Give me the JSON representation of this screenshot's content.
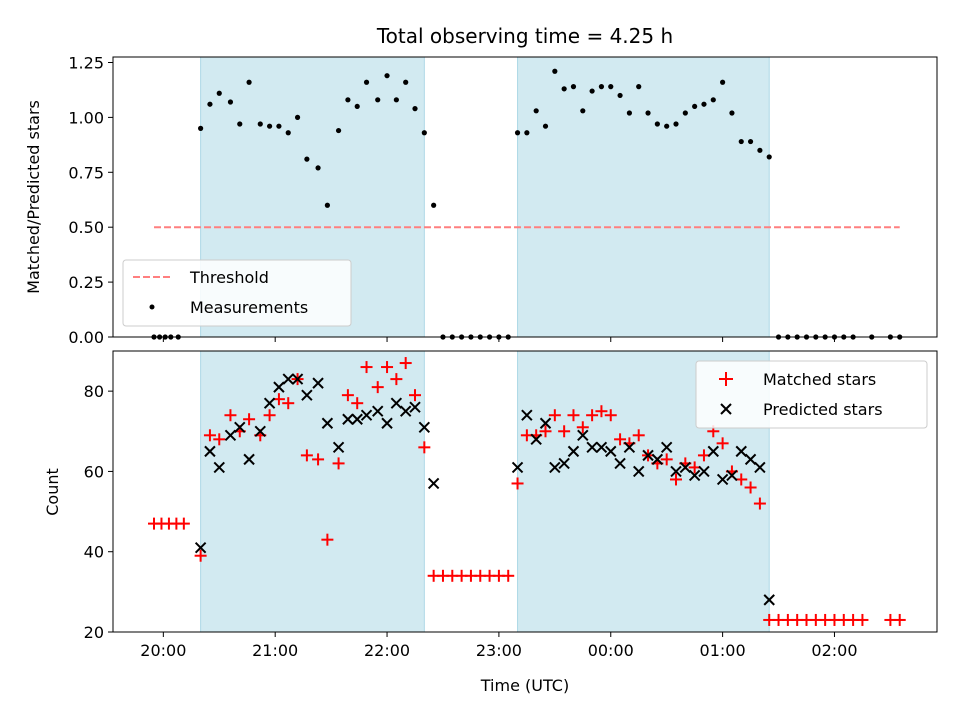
{
  "chart_data": [
    {
      "type": "scatter",
      "title": "Total observing time = 4.25 h",
      "ylabel": "Matched/Predicted stars",
      "xlabel": "",
      "xlim": [
        "19:33",
        "02:55"
      ],
      "ylim": [
        0,
        1.275
      ],
      "yticks": [
        0.0,
        0.25,
        0.5,
        0.75,
        1.0,
        1.25
      ],
      "ytick_labels": [
        "0.00",
        "0.25",
        "0.50",
        "0.75",
        "1.00",
        "1.25"
      ],
      "xticks": [
        "20:00",
        "21:00",
        "22:00",
        "23:00",
        "00:00",
        "01:00",
        "02:00"
      ],
      "shaded_intervals": [
        [
          "20:20",
          "22:20"
        ],
        [
          "23:10",
          "01:25"
        ]
      ],
      "shade_color": "#add8e6",
      "threshold": {
        "name": "Threshold",
        "value": 0.5,
        "x_range": [
          "19:55",
          "02:35"
        ],
        "color": "#ff7f7f"
      },
      "legend": {
        "position": "lower-left",
        "entries": [
          "Threshold",
          "Measurements"
        ]
      },
      "series": [
        {
          "name": "Measurements",
          "color": "#000000",
          "points": [
            [
              "19:55",
              0
            ],
            [
              "19:58",
              0
            ],
            [
              "20:01",
              0
            ],
            [
              "20:04",
              0
            ],
            [
              "20:08",
              0
            ],
            [
              "20:20",
              0.95
            ],
            [
              "20:25",
              1.06
            ],
            [
              "20:30",
              1.11
            ],
            [
              "20:36",
              1.07
            ],
            [
              "20:41",
              0.97
            ],
            [
              "20:46",
              1.16
            ],
            [
              "20:52",
              0.97
            ],
            [
              "20:57",
              0.96
            ],
            [
              "21:02",
              0.96
            ],
            [
              "21:07",
              0.93
            ],
            [
              "21:12",
              1.0
            ],
            [
              "21:17",
              0.81
            ],
            [
              "21:23",
              0.77
            ],
            [
              "21:28",
              0.6
            ],
            [
              "21:34",
              0.94
            ],
            [
              "21:39",
              1.08
            ],
            [
              "21:44",
              1.05
            ],
            [
              "21:49",
              1.16
            ],
            [
              "21:55",
              1.08
            ],
            [
              "22:00",
              1.19
            ],
            [
              "22:05",
              1.08
            ],
            [
              "22:10",
              1.16
            ],
            [
              "22:15",
              1.04
            ],
            [
              "22:20",
              0.93
            ],
            [
              "22:25",
              0.6
            ],
            [
              "22:30",
              0
            ],
            [
              "22:35",
              0
            ],
            [
              "22:40",
              0
            ],
            [
              "22:45",
              0
            ],
            [
              "22:50",
              0
            ],
            [
              "22:55",
              0
            ],
            [
              "23:00",
              0
            ],
            [
              "23:05",
              0
            ],
            [
              "23:10",
              0.93
            ],
            [
              "23:15",
              0.93
            ],
            [
              "23:20",
              1.03
            ],
            [
              "23:25",
              0.96
            ],
            [
              "23:30",
              1.21
            ],
            [
              "23:35",
              1.13
            ],
            [
              "23:40",
              1.14
            ],
            [
              "23:45",
              1.03
            ],
            [
              "23:50",
              1.12
            ],
            [
              "23:55",
              1.14
            ],
            [
              "00:00",
              1.14
            ],
            [
              "00:05",
              1.1
            ],
            [
              "00:10",
              1.02
            ],
            [
              "00:15",
              1.14
            ],
            [
              "00:20",
              1.02
            ],
            [
              "00:25",
              0.97
            ],
            [
              "00:30",
              0.96
            ],
            [
              "00:35",
              0.97
            ],
            [
              "00:40",
              1.02
            ],
            [
              "00:45",
              1.05
            ],
            [
              "00:50",
              1.06
            ],
            [
              "00:55",
              1.08
            ],
            [
              "01:00",
              1.16
            ],
            [
              "01:05",
              1.02
            ],
            [
              "01:10",
              0.89
            ],
            [
              "01:15",
              0.89
            ],
            [
              "01:20",
              0.85
            ],
            [
              "01:25",
              0.82
            ],
            [
              "01:30",
              0
            ],
            [
              "01:35",
              0
            ],
            [
              "01:40",
              0
            ],
            [
              "01:45",
              0
            ],
            [
              "01:50",
              0
            ],
            [
              "01:55",
              0
            ],
            [
              "02:00",
              0
            ],
            [
              "02:05",
              0
            ],
            [
              "02:10",
              0
            ],
            [
              "02:20",
              0
            ],
            [
              "02:30",
              0
            ],
            [
              "02:35",
              0
            ]
          ]
        }
      ]
    },
    {
      "type": "scatter",
      "title": "",
      "ylabel": "Count",
      "xlabel": "Time (UTC)",
      "xlim": [
        "19:33",
        "02:55"
      ],
      "ylim": [
        20,
        90
      ],
      "yticks": [
        20,
        40,
        60,
        80
      ],
      "ytick_labels": [
        "20",
        "40",
        "60",
        "80"
      ],
      "xticks": [
        "20:00",
        "21:00",
        "22:00",
        "23:00",
        "00:00",
        "01:00",
        "02:00"
      ],
      "shaded_intervals": [
        [
          "20:20",
          "22:20"
        ],
        [
          "23:10",
          "01:25"
        ]
      ],
      "shade_color": "#add8e6",
      "legend": {
        "position": "upper-right",
        "entries": [
          "Matched stars",
          "Predicted stars"
        ]
      },
      "series": [
        {
          "name": "Matched stars",
          "marker": "plus",
          "color": "#ff0000",
          "points": [
            [
              "19:55",
              47
            ],
            [
              "19:59",
              47
            ],
            [
              "20:03",
              47
            ],
            [
              "20:07",
              47
            ],
            [
              "20:11",
              47
            ],
            [
              "20:20",
              39
            ],
            [
              "20:25",
              69
            ],
            [
              "20:30",
              68
            ],
            [
              "20:36",
              74
            ],
            [
              "20:41",
              70
            ],
            [
              "20:46",
              73
            ],
            [
              "20:52",
              69
            ],
            [
              "20:57",
              74
            ],
            [
              "21:02",
              78
            ],
            [
              "21:07",
              77
            ],
            [
              "21:12",
              83
            ],
            [
              "21:17",
              64
            ],
            [
              "21:23",
              63
            ],
            [
              "21:28",
              43
            ],
            [
              "21:34",
              62
            ],
            [
              "21:39",
              79
            ],
            [
              "21:44",
              77
            ],
            [
              "21:49",
              86
            ],
            [
              "21:55",
              81
            ],
            [
              "22:00",
              86
            ],
            [
              "22:05",
              83
            ],
            [
              "22:10",
              87
            ],
            [
              "22:15",
              79
            ],
            [
              "22:20",
              66
            ],
            [
              "22:25",
              34
            ],
            [
              "22:30",
              34
            ],
            [
              "22:35",
              34
            ],
            [
              "22:40",
              34
            ],
            [
              "22:45",
              34
            ],
            [
              "22:50",
              34
            ],
            [
              "22:55",
              34
            ],
            [
              "23:00",
              34
            ],
            [
              "23:05",
              34
            ],
            [
              "23:10",
              57
            ],
            [
              "23:15",
              69
            ],
            [
              "23:20",
              69
            ],
            [
              "23:25",
              70
            ],
            [
              "23:30",
              74
            ],
            [
              "23:35",
              70
            ],
            [
              "23:40",
              74
            ],
            [
              "23:45",
              71
            ],
            [
              "23:50",
              74
            ],
            [
              "23:55",
              75
            ],
            [
              "00:00",
              74
            ],
            [
              "00:05",
              68
            ],
            [
              "00:10",
              67
            ],
            [
              "00:15",
              69
            ],
            [
              "00:20",
              64
            ],
            [
              "00:25",
              62
            ],
            [
              "00:30",
              63
            ],
            [
              "00:35",
              58
            ],
            [
              "00:40",
              62
            ],
            [
              "00:45",
              61
            ],
            [
              "00:50",
              64
            ],
            [
              "00:55",
              70
            ],
            [
              "01:00",
              67
            ],
            [
              "01:05",
              60
            ],
            [
              "01:10",
              58
            ],
            [
              "01:15",
              56
            ],
            [
              "01:20",
              52
            ],
            [
              "01:25",
              23
            ],
            [
              "01:30",
              23
            ],
            [
              "01:35",
              23
            ],
            [
              "01:40",
              23
            ],
            [
              "01:45",
              23
            ],
            [
              "01:50",
              23
            ],
            [
              "01:55",
              23
            ],
            [
              "02:00",
              23
            ],
            [
              "02:05",
              23
            ],
            [
              "02:10",
              23
            ],
            [
              "02:15",
              23
            ],
            [
              "02:30",
              23
            ],
            [
              "02:35",
              23
            ]
          ]
        },
        {
          "name": "Predicted stars",
          "marker": "x",
          "color": "#000000",
          "points": [
            [
              "20:20",
              41
            ],
            [
              "20:25",
              65
            ],
            [
              "20:30",
              61
            ],
            [
              "20:36",
              69
            ],
            [
              "20:41",
              71
            ],
            [
              "20:46",
              63
            ],
            [
              "20:52",
              70
            ],
            [
              "20:57",
              77
            ],
            [
              "21:02",
              81
            ],
            [
              "21:07",
              83
            ],
            [
              "21:12",
              83
            ],
            [
              "21:17",
              79
            ],
            [
              "21:23",
              82
            ],
            [
              "21:28",
              72
            ],
            [
              "21:34",
              66
            ],
            [
              "21:39",
              73
            ],
            [
              "21:44",
              73
            ],
            [
              "21:49",
              74
            ],
            [
              "21:55",
              75
            ],
            [
              "22:00",
              72
            ],
            [
              "22:05",
              77
            ],
            [
              "22:10",
              75
            ],
            [
              "22:15",
              76
            ],
            [
              "22:20",
              71
            ],
            [
              "22:25",
              57
            ],
            [
              "23:10",
              61
            ],
            [
              "23:15",
              74
            ],
            [
              "23:20",
              68
            ],
            [
              "23:25",
              72
            ],
            [
              "23:30",
              61
            ],
            [
              "23:35",
              62
            ],
            [
              "23:40",
              65
            ],
            [
              "23:45",
              69
            ],
            [
              "23:50",
              66
            ],
            [
              "23:55",
              66
            ],
            [
              "00:00",
              65
            ],
            [
              "00:05",
              62
            ],
            [
              "00:10",
              66
            ],
            [
              "00:15",
              60
            ],
            [
              "00:20",
              64
            ],
            [
              "00:25",
              63
            ],
            [
              "00:30",
              66
            ],
            [
              "00:35",
              60
            ],
            [
              "00:40",
              61
            ],
            [
              "00:45",
              59
            ],
            [
              "00:50",
              60
            ],
            [
              "00:55",
              65
            ],
            [
              "01:00",
              58
            ],
            [
              "01:05",
              59
            ],
            [
              "01:10",
              65
            ],
            [
              "01:15",
              63
            ],
            [
              "01:20",
              61
            ],
            [
              "01:25",
              28
            ]
          ]
        }
      ]
    }
  ]
}
